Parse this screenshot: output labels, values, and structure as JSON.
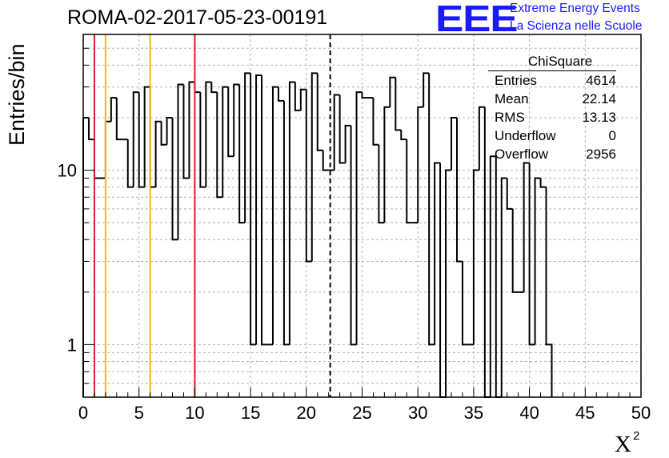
{
  "header": {
    "title": "ROMA-02-2017-05-23-00191",
    "logo_mark": "EEE",
    "logo_line1": "Extreme Energy Events",
    "logo_line2": "La Scienza nelle Scuole"
  },
  "colors": {
    "histogram": "#000000",
    "grid": "#b4b4b4",
    "red_marker": "#e02020",
    "orange_marker": "#f0c000",
    "logo": "#1a1aff"
  },
  "stats": {
    "name": "ChiSquare",
    "rows": [
      {
        "label": "Entries",
        "value": "4614"
      },
      {
        "label": "Mean",
        "value": "22.14"
      },
      {
        "label": "RMS",
        "value": "13.13"
      },
      {
        "label": "Underflow",
        "value": "0"
      },
      {
        "label": "Overflow",
        "value": "2956"
      }
    ]
  },
  "chart_data": {
    "type": "histogram",
    "title": "ROMA-02-2017-05-23-00191",
    "xlabel": "X²",
    "ylabel": "Entries/bin",
    "xlim": [
      0,
      50
    ],
    "ylim": [
      0.5,
      60
    ],
    "yscale": "log",
    "grid": true,
    "bin_width": 0.5,
    "x_ticks": [
      "0",
      "5",
      "10",
      "15",
      "20",
      "25",
      "30",
      "35",
      "40",
      "45",
      "50"
    ],
    "y_ticks": [
      "1",
      "10"
    ],
    "counts": [
      20,
      15,
      9,
      9,
      19,
      26,
      15,
      15,
      8,
      28,
      8,
      30,
      8,
      19,
      14,
      20,
      4,
      31,
      9,
      32,
      28,
      8,
      32,
      28,
      7,
      30,
      12,
      31,
      5,
      36,
      1,
      35,
      1,
      1,
      30,
      25,
      1,
      32,
      22,
      29,
      3,
      36,
      13,
      10,
      10,
      27,
      11,
      18,
      1,
      28,
      26,
      26,
      14,
      5,
      23,
      34,
      17,
      15,
      5,
      5,
      23,
      36,
      1,
      11,
      0,
      10,
      20,
      3,
      1,
      1,
      10,
      23,
      0,
      12,
      0,
      9,
      6,
      2,
      2,
      11,
      1,
      9,
      8,
      1
    ],
    "vertical_lines": [
      {
        "x": 1,
        "color": "red",
        "style": "solid"
      },
      {
        "x": 2,
        "color": "orange",
        "style": "solid"
      },
      {
        "x": 6,
        "color": "orange",
        "style": "solid"
      },
      {
        "x": 10,
        "color": "red",
        "style": "solid"
      },
      {
        "x": 22.14,
        "color": "black",
        "style": "dashed"
      }
    ]
  }
}
